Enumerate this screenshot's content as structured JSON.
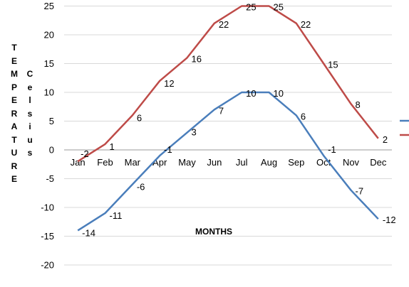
{
  "chart_data": {
    "type": "line",
    "title": "",
    "xlabel": "MONTHS",
    "ylabel_outer": "TEMPERATURE",
    "ylabel_inner": "Celsius",
    "categories": [
      "Jan",
      "Feb",
      "Mar",
      "Apr",
      "May",
      "Jun",
      "Jul",
      "Aug",
      "Sep",
      "Oct",
      "Nov",
      "Dec"
    ],
    "ylim": [
      -20,
      25
    ],
    "yticks": [
      -20,
      -15,
      -10,
      -5,
      0,
      5,
      10,
      15,
      20,
      25
    ],
    "grid": true,
    "legend": "right (cropped)",
    "series": [
      {
        "color": "#4a7ebb",
        "values": [
          -14,
          -11,
          -6,
          -1,
          3,
          7,
          10,
          10,
          6,
          -1,
          -7,
          -12
        ]
      },
      {
        "color": "#be4b48",
        "values": [
          -2,
          1,
          6,
          12,
          16,
          22,
          25,
          25,
          22,
          15,
          8,
          2
        ]
      }
    ]
  }
}
